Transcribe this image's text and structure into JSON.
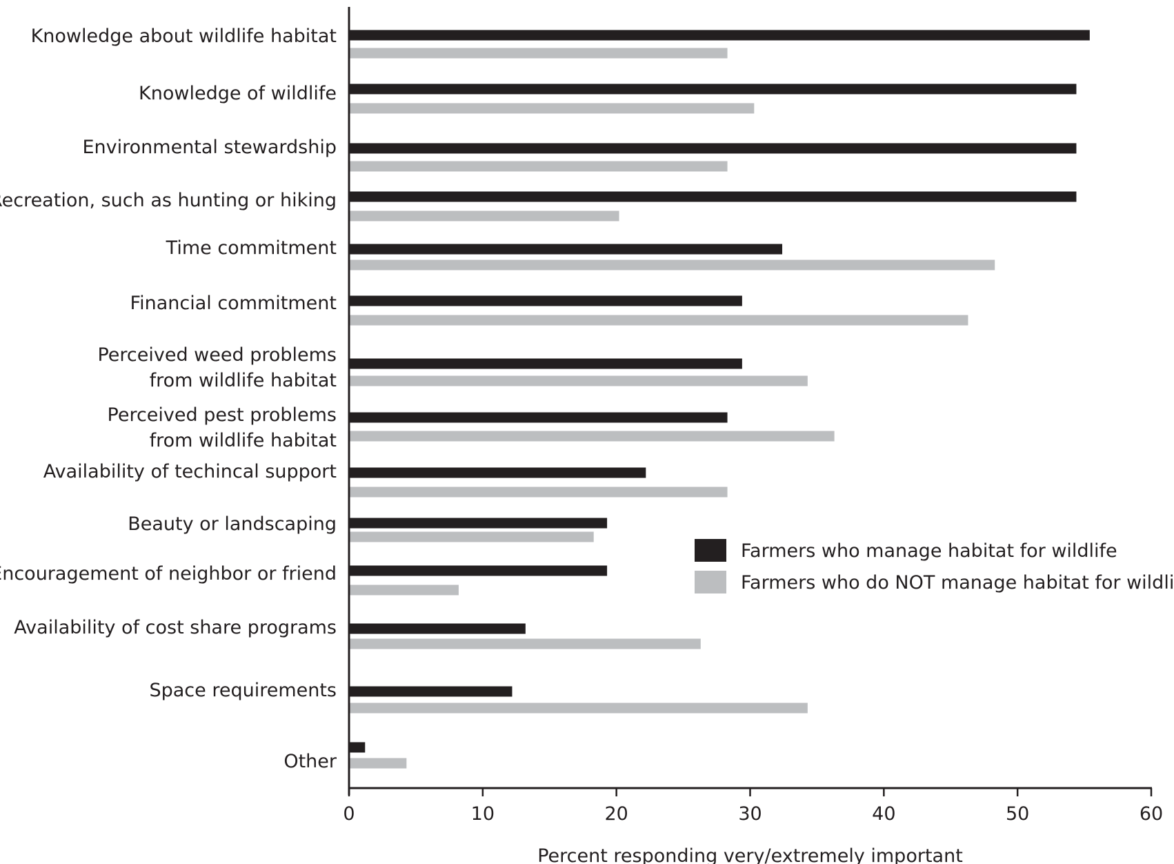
{
  "chart_data": {
    "type": "bar",
    "orientation": "horizontal",
    "categories": [
      [
        "Knowledge about wildlife habitat"
      ],
      [
        "Knowledge of wildlife"
      ],
      [
        "Environmental stewardship"
      ],
      [
        "Recreation, such as hunting or hiking"
      ],
      [
        "Time commitment"
      ],
      [
        "Financial commitment"
      ],
      [
        "Perceived weed problems",
        "from wildlife habitat"
      ],
      [
        "Perceived pest problems",
        "from wildlife habitat"
      ],
      [
        "Availability of techincal support"
      ],
      [
        "Beauty or landscaping"
      ],
      [
        "Encouragement of neighbor or friend"
      ],
      [
        "Availability of cost share programs"
      ],
      [
        "Space requirements"
      ],
      [
        "Other"
      ]
    ],
    "series": [
      {
        "name": "Farmers who manage habitat for wildlife",
        "color": "#231f20",
        "values": [
          55.4,
          54.4,
          54.4,
          54.4,
          32.4,
          29.4,
          29.4,
          28.3,
          22.2,
          19.3,
          19.3,
          13.2,
          12.2,
          1.2
        ]
      },
      {
        "name": "Farmers who do NOT manage habitat for wildlife",
        "color": "#bcbec0",
        "values": [
          28.3,
          30.3,
          28.3,
          20.2,
          48.3,
          46.3,
          34.3,
          36.3,
          28.3,
          18.3,
          8.2,
          26.3,
          34.3,
          4.3
        ]
      }
    ],
    "xlim": [
      0,
      60
    ],
    "xticks": [
      0,
      10,
      20,
      30,
      40,
      50,
      60
    ],
    "xlabel": "Percent responding very/extremely important",
    "ylabel": "",
    "title": "",
    "grid": false,
    "legend_position": "right-middle"
  }
}
